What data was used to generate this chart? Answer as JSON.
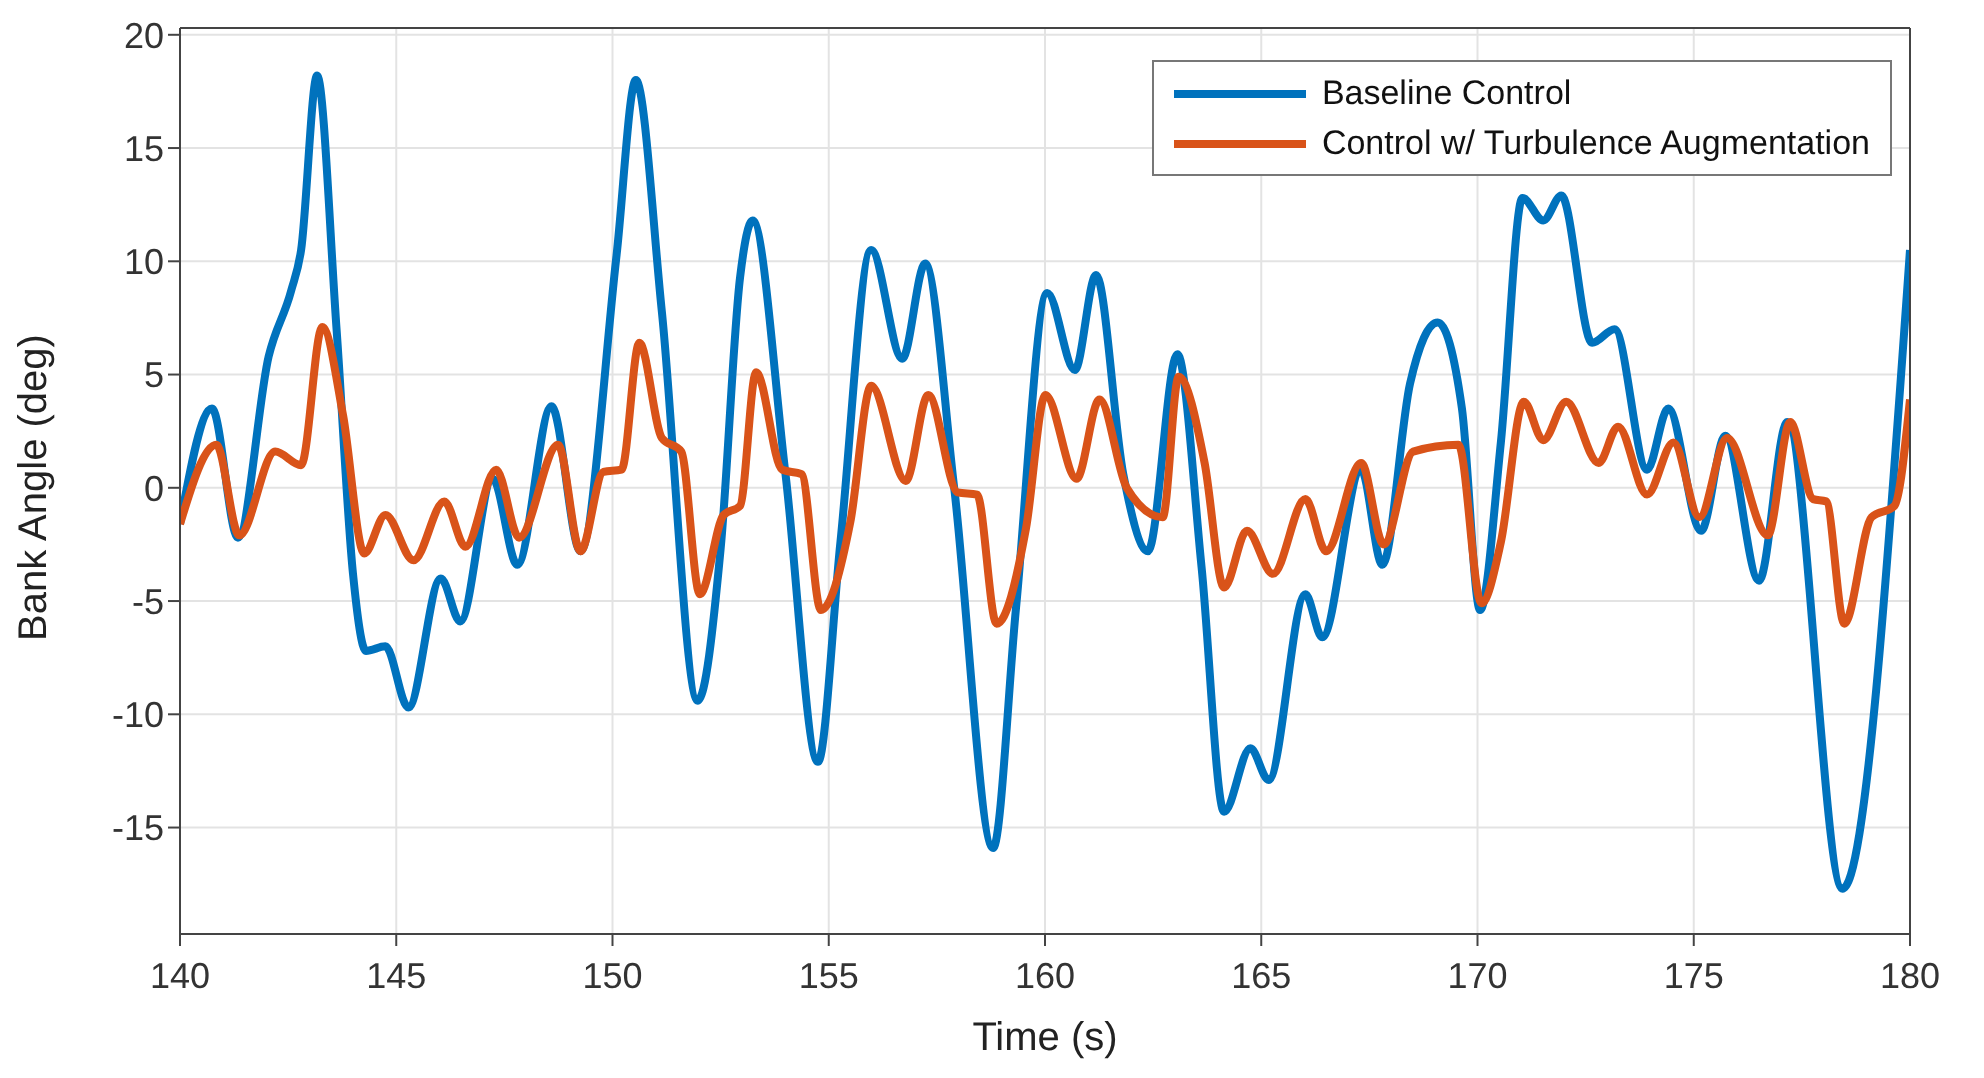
{
  "chart_data": {
    "type": "line",
    "xlabel": "Time (s)",
    "ylabel": "Bank Angle (deg)",
    "xlim": [
      140,
      180
    ],
    "ylim": [
      -19.7,
      20.3
    ],
    "xticks": [
      140,
      145,
      150,
      155,
      160,
      165,
      170,
      175,
      180
    ],
    "yticks": [
      -15,
      -10,
      -5,
      0,
      5,
      10,
      15,
      20
    ],
    "grid": true,
    "legend": "top right",
    "line_style": "solid",
    "marker": "none",
    "series": [
      {
        "name": "Baseline Control",
        "color": "#0072bd",
        "x": [
          140,
          140.74,
          141.34,
          142.05,
          142.57,
          142.8,
          143.17,
          143.62,
          144.0,
          144.3,
          144.75,
          145.28,
          146.03,
          146.48,
          147.23,
          147.8,
          148.59,
          149.26,
          150.09,
          150.54,
          151.14,
          151.97,
          152.5,
          152.95,
          153.24,
          154.0,
          154.75,
          155.27,
          155.98,
          156.7,
          157.23,
          157.9,
          158.8,
          159.33,
          160.05,
          160.69,
          161.18,
          161.81,
          162.38,
          163.06,
          163.62,
          164.14,
          164.75,
          165.17,
          166.02,
          166.41,
          167.31,
          167.8,
          168.44,
          169.08,
          169.64,
          170.06,
          170.54,
          171.04,
          171.52,
          171.94,
          172.65,
          173.17,
          173.92,
          174.41,
          175.17,
          175.73,
          176.51,
          177.16,
          178.44,
          180
        ],
        "values": [
          -1.6,
          3.5,
          -2.2,
          5.8,
          8.7,
          10.5,
          18.2,
          7.0,
          -3.8,
          -7.2,
          -7.0,
          -9.7,
          -4.0,
          -5.9,
          0.4,
          -3.4,
          3.6,
          -2.8,
          10.2,
          18.0,
          7.8,
          -9.4,
          -2.7,
          9.3,
          11.8,
          0.6,
          -12.1,
          -2.4,
          10.5,
          5.7,
          9.9,
          0,
          -15.9,
          -5.3,
          8.6,
          5.2,
          9.4,
          0.6,
          -2.8,
          5.9,
          -3.5,
          -14.3,
          -11.5,
          -12.9,
          -4.7,
          -6.6,
          0.8,
          -3.4,
          4.6,
          7.3,
          3.5,
          -5.4,
          2.0,
          12.8,
          11.8,
          12.9,
          6.4,
          7.0,
          0.8,
          3.5,
          -1.9,
          2.3,
          -4.1,
          2.9,
          -17.7,
          10.5
        ]
      },
      {
        "name": "Control w/ Turbulence Augmentation",
        "color": "#d95319",
        "x": [
          140,
          140.84,
          141.37,
          142.2,
          142.8,
          143.29,
          143.77,
          144.26,
          144.75,
          145.4,
          146.11,
          146.6,
          147.31,
          147.84,
          148.74,
          149.26,
          149.79,
          150.21,
          150.62,
          151.14,
          151.59,
          152.02,
          152.57,
          152.95,
          153.32,
          153.92,
          154.37,
          154.82,
          155.5,
          155.98,
          156.78,
          157.3,
          157.98,
          158.43,
          158.88,
          159.56,
          160.01,
          160.73,
          161.26,
          161.89,
          162.72,
          163.09,
          163.69,
          164.14,
          164.67,
          165.27,
          166.02,
          166.5,
          167.31,
          167.83,
          168.51,
          169.56,
          170.09,
          170.54,
          171.07,
          171.52,
          172.05,
          172.8,
          173.25,
          173.92,
          174.53,
          175.13,
          175.77,
          176.71,
          177.23,
          177.76,
          178.06,
          178.48,
          179.11,
          179.64,
          180
        ],
        "values": [
          -1.6,
          1.9,
          -2.1,
          1.6,
          1.0,
          7.1,
          3.2,
          -2.9,
          -1.2,
          -3.2,
          -0.6,
          -2.6,
          0.8,
          -2.2,
          1.9,
          -2.8,
          0.7,
          0.8,
          6.4,
          2.2,
          1.6,
          -4.7,
          -1.2,
          -0.8,
          5.1,
          0.8,
          0.6,
          -5.4,
          -1.5,
          4.5,
          0.3,
          4.1,
          -0.2,
          -0.3,
          -6.0,
          -1.8,
          4.1,
          0.4,
          3.9,
          0,
          -1.3,
          4.9,
          1.1,
          -4.4,
          -1.9,
          -3.8,
          -0.5,
          -2.8,
          1.1,
          -2.5,
          1.6,
          1.9,
          -5.1,
          -2.4,
          3.8,
          2.1,
          3.8,
          1.1,
          2.7,
          -0.3,
          2.0,
          -1.3,
          2.2,
          -2.1,
          2.9,
          -0.5,
          -0.6,
          -6.0,
          -1.3,
          -0.8,
          3.9
        ]
      }
    ]
  }
}
